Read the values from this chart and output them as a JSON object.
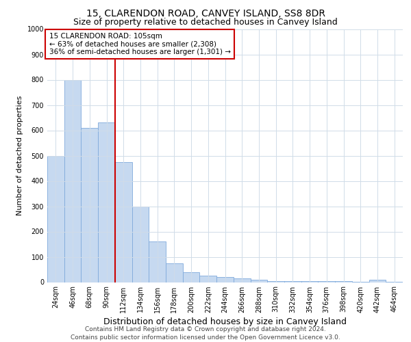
{
  "title": "15, CLARENDON ROAD, CANVEY ISLAND, SS8 8DR",
  "subtitle": "Size of property relative to detached houses in Canvey Island",
  "xlabel": "Distribution of detached houses by size in Canvey Island",
  "ylabel": "Number of detached properties",
  "footer_line1": "Contains HM Land Registry data © Crown copyright and database right 2024.",
  "footer_line2": "Contains public sector information licensed under the Open Government Licence v3.0.",
  "bar_labels": [
    "24sqm",
    "46sqm",
    "68sqm",
    "90sqm",
    "112sqm",
    "134sqm",
    "156sqm",
    "178sqm",
    "200sqm",
    "222sqm",
    "244sqm",
    "266sqm",
    "288sqm",
    "310sqm",
    "332sqm",
    "354sqm",
    "376sqm",
    "398sqm",
    "420sqm",
    "442sqm",
    "464sqm"
  ],
  "bar_values": [
    500,
    800,
    610,
    630,
    475,
    300,
    160,
    75,
    40,
    25,
    20,
    15,
    10,
    5,
    5,
    5,
    3,
    3,
    2,
    10,
    2
  ],
  "bar_color": "#c6d9f0",
  "bar_edgecolor": "#7faadc",
  "vline_color": "#cc0000",
  "vline_x": 3.5,
  "annotation_text": "15 CLARENDON ROAD: 105sqm\n← 63% of detached houses are smaller (2,308)\n36% of semi-detached houses are larger (1,301) →",
  "annotation_box_facecolor": "#ffffff",
  "annotation_box_edgecolor": "#cc0000",
  "ylim": [
    0,
    1000
  ],
  "yticks": [
    0,
    100,
    200,
    300,
    400,
    500,
    600,
    700,
    800,
    900,
    1000
  ],
  "background_color": "#ffffff",
  "grid_color": "#d0dce8",
  "title_fontsize": 10,
  "subtitle_fontsize": 9,
  "xlabel_fontsize": 9,
  "ylabel_fontsize": 8,
  "tick_fontsize": 7,
  "annotation_fontsize": 7.5,
  "footer_fontsize": 6.5
}
